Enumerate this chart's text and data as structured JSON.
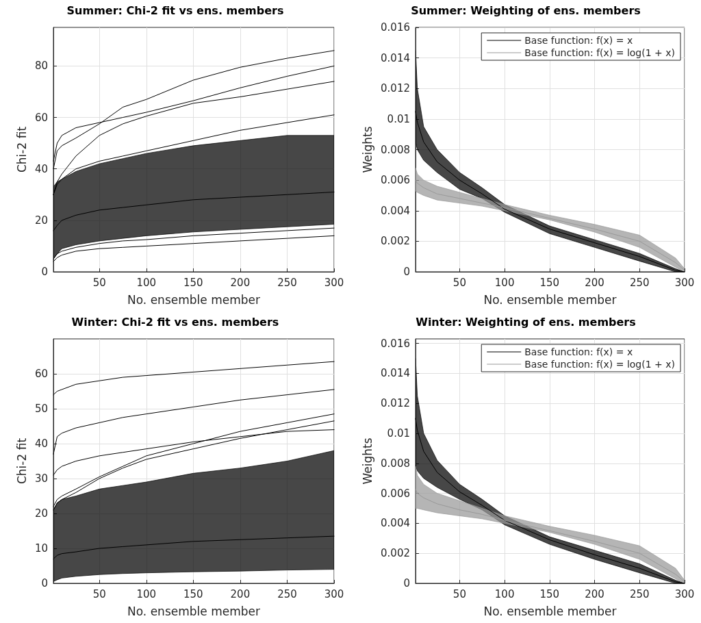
{
  "chart_data": [
    {
      "type": "line",
      "title": "Summer: Chi-2 fit vs ens. members",
      "xlabel": "No. ensemble member",
      "ylabel": "Chi-2 fit",
      "x": [
        1,
        5,
        10,
        25,
        50,
        75,
        100,
        150,
        200,
        250,
        300
      ],
      "xlim": [
        1,
        300
      ],
      "xticks": [
        50,
        100,
        150,
        200,
        250,
        300
      ],
      "ylim": [
        0,
        95
      ],
      "yticks": [
        0,
        20,
        40,
        60,
        80
      ],
      "grid": true,
      "legend": false,
      "marker": "none",
      "line_style": "solid",
      "series": [
        {
          "color": "#000000",
          "values": [
            16,
            18,
            20,
            22,
            24,
            25,
            26,
            28,
            29,
            30,
            31
          ],
          "lower": [
            5,
            7,
            9,
            10.5,
            12,
            13,
            14,
            15.5,
            16.5,
            17.5,
            18.5
          ],
          "upper": [
            33,
            35,
            36,
            39,
            42,
            44,
            46,
            49,
            51,
            53,
            53
          ]
        },
        {
          "color": "#000000",
          "values": [
            40,
            47,
            49,
            52,
            57.5,
            64,
            67,
            74.5,
            79.5,
            83,
            86
          ]
        },
        {
          "color": "#000000",
          "values": [
            43,
            50,
            53,
            56,
            58,
            60,
            62,
            66.5,
            71.5,
            76,
            80
          ]
        },
        {
          "color": "#000000",
          "values": [
            30,
            35,
            38,
            45,
            53,
            57.5,
            60.5,
            65.5,
            68,
            71,
            74
          ]
        },
        {
          "color": "#000000",
          "values": [
            30,
            34,
            36,
            40,
            43,
            45,
            47,
            51,
            55,
            58,
            61
          ]
        },
        {
          "color": "#000000",
          "values": [
            4,
            5.5,
            6.5,
            8,
            9,
            9.5,
            10,
            11,
            12,
            13,
            14
          ]
        },
        {
          "color": "#000000",
          "values": [
            5,
            7,
            8,
            9.5,
            11,
            12,
            12.5,
            14,
            15,
            16,
            17
          ]
        }
      ]
    },
    {
      "type": "line",
      "title": "Summer: Weighting of ens. members",
      "xlabel": "No. ensemble member",
      "ylabel": "Weights",
      "x": [
        1,
        3,
        10,
        25,
        50,
        75,
        100,
        150,
        200,
        250,
        290,
        300
      ],
      "xlim": [
        1,
        300
      ],
      "xticks": [
        50,
        100,
        150,
        200,
        250,
        300
      ],
      "ylim": [
        0,
        0.016
      ],
      "yticks": [
        0,
        0.002,
        0.004,
        0.006,
        0.008,
        0.01,
        0.012,
        0.014,
        0.016
      ],
      "grid": true,
      "legend": "top right",
      "marker": "none",
      "line_style": "solid",
      "series": [
        {
          "name": "Base function: f(x) = x",
          "color": "#000000",
          "values": [
            0.0105,
            0.0098,
            0.0085,
            0.0072,
            0.006,
            0.0051,
            0.0041,
            0.0028,
            0.0019,
            0.001,
            0.0001,
            0
          ],
          "lower": [
            0.0085,
            0.008,
            0.0073,
            0.0065,
            0.0054,
            0.0048,
            0.0039,
            0.0025,
            0.0016,
            0.0007,
            0,
            0
          ],
          "upper": [
            0.0145,
            0.012,
            0.0095,
            0.008,
            0.0065,
            0.0055,
            0.0044,
            0.003,
            0.0021,
            0.0012,
            0.0002,
            0
          ]
        },
        {
          "name": "Base function: f(x) = log(1 + x)",
          "color": "#999999",
          "values": [
            0.006,
            0.0058,
            0.0055,
            0.0051,
            0.0048,
            0.0045,
            0.0042,
            0.0035,
            0.0028,
            0.002,
            0.0006,
            0.0001
          ],
          "lower": [
            0.0053,
            0.0052,
            0.005,
            0.0047,
            0.0045,
            0.0043,
            0.004,
            0.0034,
            0.0026,
            0.0016,
            0.0003,
            0
          ],
          "upper": [
            0.0068,
            0.0064,
            0.006,
            0.0056,
            0.0052,
            0.0048,
            0.0044,
            0.0037,
            0.0031,
            0.0024,
            0.0009,
            0.0002
          ]
        }
      ]
    },
    {
      "type": "line",
      "title": "Winter: Chi-2 fit vs ens. members",
      "xlabel": "No. ensemble member",
      "ylabel": "Chi-2 fit",
      "x": [
        1,
        5,
        10,
        25,
        50,
        75,
        100,
        150,
        200,
        250,
        300
      ],
      "xlim": [
        1,
        300
      ],
      "xticks": [
        50,
        100,
        150,
        200,
        250,
        300
      ],
      "ylim": [
        0,
        70
      ],
      "yticks": [
        0,
        10,
        20,
        30,
        40,
        50,
        60
      ],
      "grid": true,
      "legend": false,
      "marker": "none",
      "line_style": "solid",
      "series": [
        {
          "color": "#000000",
          "values": [
            7,
            8,
            8.5,
            9,
            10,
            10.5,
            11,
            12,
            12.5,
            13,
            13.5
          ],
          "lower": [
            0.5,
            1,
            1.5,
            2,
            2.5,
            2.8,
            3,
            3.3,
            3.5,
            3.8,
            4
          ],
          "upper": [
            21,
            23,
            24,
            25,
            27,
            28,
            29,
            31.5,
            33,
            35,
            38
          ]
        },
        {
          "color": "#000000",
          "values": [
            54,
            55,
            55.5,
            57,
            58,
            59,
            59.5,
            60.5,
            61.5,
            62.5,
            63.5
          ]
        },
        {
          "color": "#000000",
          "values": [
            37,
            42,
            43,
            44.5,
            46,
            47.5,
            48.5,
            50.5,
            52.5,
            54,
            55.5
          ]
        },
        {
          "color": "#000000",
          "values": [
            31,
            32.5,
            33.5,
            35,
            36.5,
            37.5,
            38.5,
            40.5,
            42,
            43.5,
            44
          ]
        },
        {
          "color": "#000000",
          "values": [
            22,
            24,
            25,
            27,
            30.5,
            33.5,
            36.5,
            40,
            43.5,
            46,
            48.5
          ]
        },
        {
          "color": "#000000",
          "values": [
            21,
            23,
            24,
            26,
            30,
            33,
            35.5,
            38.5,
            41.5,
            44,
            46.5
          ]
        }
      ]
    },
    {
      "type": "line",
      "title": "Winter: Weighting of ens. members",
      "xlabel": "No. ensemble member",
      "ylabel": "Weights",
      "x": [
        1,
        3,
        10,
        25,
        50,
        75,
        100,
        150,
        200,
        250,
        290,
        300
      ],
      "xlim": [
        1,
        300
      ],
      "xticks": [
        50,
        100,
        150,
        200,
        250,
        300
      ],
      "ylim": [
        0,
        0.0163
      ],
      "yticks": [
        0,
        0.002,
        0.004,
        0.006,
        0.008,
        0.01,
        0.012,
        0.014,
        0.016
      ],
      "grid": true,
      "legend": "top right",
      "marker": "none",
      "line_style": "solid",
      "series": [
        {
          "name": "Base function: f(x) = x",
          "color": "#000000",
          "values": [
            0.011,
            0.0102,
            0.0088,
            0.0074,
            0.0061,
            0.0052,
            0.0042,
            0.0029,
            0.0019,
            0.001,
            0.0001,
            0
          ],
          "lower": [
            0.0078,
            0.0075,
            0.007,
            0.0064,
            0.0056,
            0.0049,
            0.0039,
            0.0026,
            0.0016,
            0.0007,
            0,
            0
          ],
          "upper": [
            0.015,
            0.0125,
            0.01,
            0.0082,
            0.0066,
            0.0056,
            0.0045,
            0.0031,
            0.0022,
            0.0013,
            0.0002,
            0
          ]
        },
        {
          "name": "Base function: f(x) = log(1 + x)",
          "color": "#999999",
          "values": [
            0.0063,
            0.006,
            0.0057,
            0.0053,
            0.0049,
            0.0046,
            0.0042,
            0.0035,
            0.0028,
            0.002,
            0.0006,
            0.0001
          ],
          "lower": [
            0.005,
            0.005,
            0.0049,
            0.0047,
            0.0045,
            0.0043,
            0.004,
            0.0034,
            0.0026,
            0.0016,
            0.0003,
            0
          ],
          "upper": [
            0.0078,
            0.0072,
            0.0066,
            0.006,
            0.0055,
            0.005,
            0.0045,
            0.0038,
            0.0032,
            0.0025,
            0.001,
            0.0002
          ]
        }
      ]
    }
  ]
}
